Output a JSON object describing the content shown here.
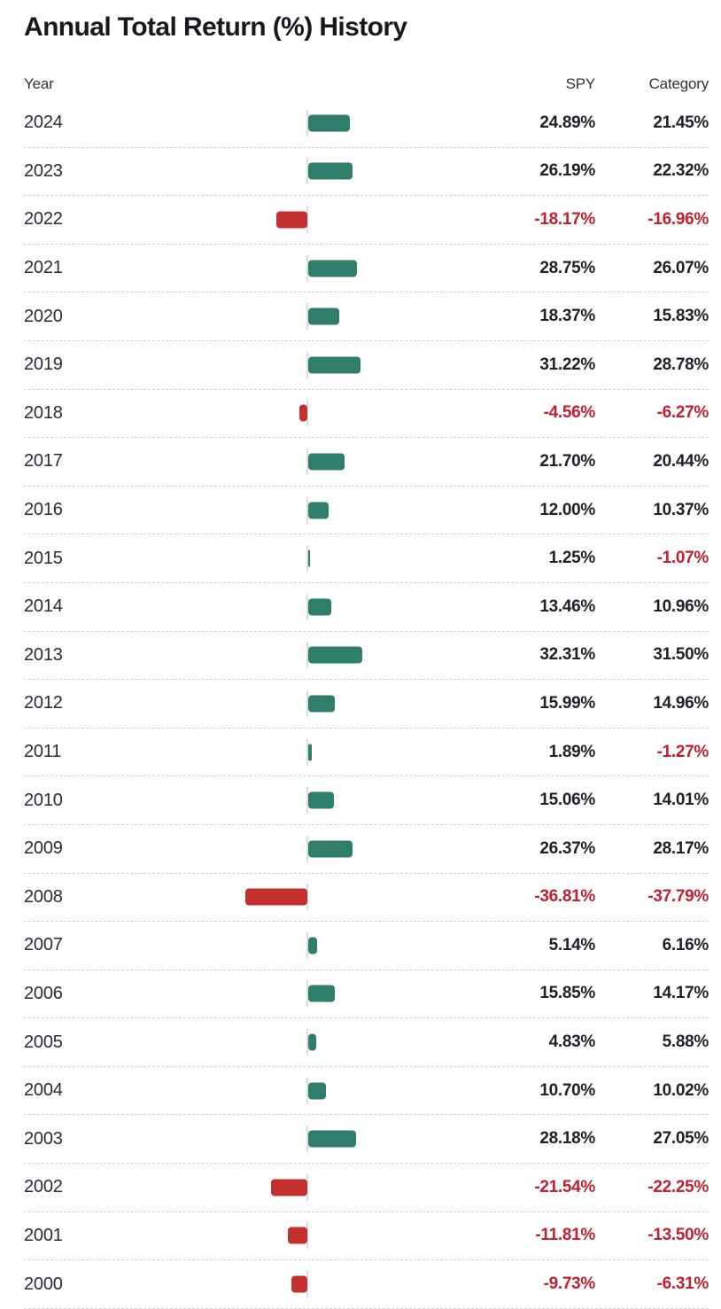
{
  "title": "Annual Total Return (%) History",
  "columns": {
    "year": "Year",
    "spy": "SPY",
    "category": "Category"
  },
  "colors": {
    "positive_bar": "#2f7d6b",
    "negative_bar": "#c4312d",
    "positive_text": "#1d2128",
    "negative_text": "#c0202f",
    "year_text": "#272c35",
    "separator": "#d2d2d2",
    "baseline": "#dcdcdc"
  },
  "chart_data": {
    "type": "bar",
    "title": "Annual Total Return (%) History",
    "xlabel": "Year",
    "ylabel": "Annual Total Return (%)",
    "orientation": "horizontal",
    "legend_position": "column-headers",
    "grid": false,
    "axis_range_pct": [
      -40,
      40
    ],
    "bar_series_shown": "SPY",
    "categories": [
      "2024",
      "2023",
      "2022",
      "2021",
      "2020",
      "2019",
      "2018",
      "2017",
      "2016",
      "2015",
      "2014",
      "2013",
      "2012",
      "2011",
      "2010",
      "2009",
      "2008",
      "2007",
      "2006",
      "2005",
      "2004",
      "2003",
      "2002",
      "2001",
      "2000"
    ],
    "series": [
      {
        "name": "SPY",
        "values": [
          24.89,
          26.19,
          -18.17,
          28.75,
          18.37,
          31.22,
          -4.56,
          21.7,
          12.0,
          1.25,
          13.46,
          32.31,
          15.99,
          1.89,
          15.06,
          26.37,
          -36.81,
          5.14,
          15.85,
          4.83,
          10.7,
          28.18,
          -21.54,
          -11.81,
          -9.73
        ]
      },
      {
        "name": "Category",
        "values": [
          21.45,
          22.32,
          -16.96,
          26.07,
          15.83,
          28.78,
          -6.27,
          20.44,
          10.37,
          -1.07,
          10.96,
          31.5,
          14.96,
          -1.27,
          14.01,
          28.17,
          -37.79,
          6.16,
          14.17,
          5.88,
          10.02,
          27.05,
          -22.25,
          -13.5,
          -6.31
        ]
      }
    ]
  }
}
